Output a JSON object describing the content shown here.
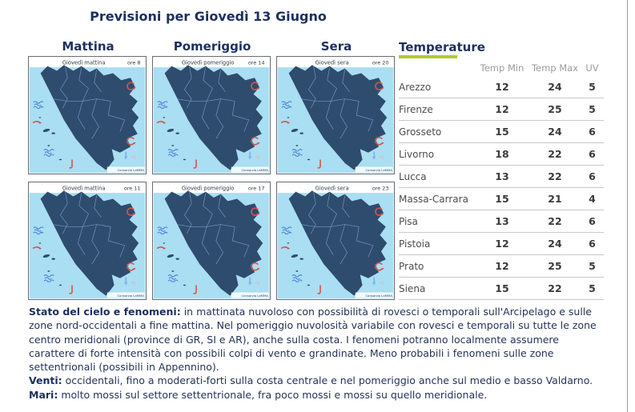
{
  "page": {
    "title": "Previsioni per Giovedì 13 Giugno"
  },
  "columns": {
    "morning": "Mattina",
    "afternoon": "Pomeriggio",
    "evening": "Sera"
  },
  "colors": {
    "navy_text": "#1c2f5e",
    "accent_green": "#b0cc33",
    "sea": "#aadef2",
    "land": "#2e4c6e",
    "province_lines": "#7fa3c9",
    "red_symbol": "#d9544a",
    "blue_arrow": "#85b4e8",
    "celsius_label": "#efa49b"
  },
  "maps": [
    {
      "title": "Giovedì mattina",
      "ore": "ore 8",
      "credit": "Consorzio LaMMA",
      "icons": [
        [
          "sg",
          14,
          12
        ],
        [
          "sw",
          30,
          9
        ],
        [
          "cw",
          46,
          12
        ],
        [
          "sg",
          22,
          22
        ],
        [
          "s",
          38,
          21
        ],
        [
          "cw",
          56,
          20
        ],
        [
          "cw",
          70,
          25
        ],
        [
          "s",
          11,
          32
        ],
        [
          "sw",
          29,
          33
        ],
        [
          "sw",
          46,
          33
        ],
        [
          "cw",
          63,
          36
        ],
        [
          "cw",
          79,
          38
        ],
        [
          "s",
          20,
          47
        ],
        [
          "sw",
          37,
          48
        ],
        [
          "cw",
          55,
          50
        ],
        [
          "cw",
          71,
          53
        ],
        [
          "cw",
          28,
          62
        ],
        [
          "cw",
          46,
          64
        ],
        [
          "cw",
          63,
          66
        ],
        [
          "cw",
          38,
          76
        ],
        [
          "cw",
          56,
          80
        ],
        [
          "cw",
          70,
          76
        ],
        [
          "cw",
          48,
          90
        ]
      ]
    },
    {
      "title": "Giovedì pomeriggio",
      "ore": "ore 14",
      "credit": "Consorzio LaMMA",
      "icons": [
        [
          "cg",
          14,
          12
        ],
        [
          "sg",
          30,
          9
        ],
        [
          "sg",
          46,
          12
        ],
        [
          "cg",
          62,
          10
        ],
        [
          "sg",
          22,
          22
        ],
        [
          "s",
          38,
          22
        ],
        [
          "sg",
          56,
          21
        ],
        [
          "r",
          73,
          25
        ],
        [
          "sw",
          11,
          33
        ],
        [
          "s",
          29,
          34
        ],
        [
          "r",
          46,
          34
        ],
        [
          "sg",
          63,
          36
        ],
        [
          "cg",
          80,
          39
        ],
        [
          "s",
          19,
          48
        ],
        [
          "sg",
          37,
          49
        ],
        [
          "r",
          55,
          50
        ],
        [
          "sg",
          71,
          53
        ],
        [
          "sw",
          28,
          62
        ],
        [
          "r",
          46,
          64
        ],
        [
          "r",
          63,
          67
        ],
        [
          "sg",
          38,
          77
        ],
        [
          "r",
          56,
          81
        ],
        [
          "sg",
          71,
          76
        ],
        [
          "r",
          48,
          91
        ]
      ]
    },
    {
      "title": "Giovedì sera",
      "ore": "ore 20",
      "credit": "Consorzio LaMMA",
      "icons": [
        [
          "mc",
          13,
          12
        ],
        [
          "m",
          30,
          10
        ],
        [
          "mc",
          46,
          12
        ],
        [
          "m",
          62,
          10
        ],
        [
          "mc",
          21,
          23
        ],
        [
          "m",
          38,
          22
        ],
        [
          "m",
          56,
          21
        ],
        [
          "m",
          73,
          26
        ],
        [
          "mc",
          11,
          34
        ],
        [
          "mc",
          29,
          34
        ],
        [
          "m",
          46,
          35
        ],
        [
          "m",
          63,
          37
        ],
        [
          "m",
          80,
          40
        ],
        [
          "mc",
          19,
          49
        ],
        [
          "m",
          37,
          50
        ],
        [
          "m",
          55,
          51
        ],
        [
          "mc",
          71,
          54
        ],
        [
          "m",
          28,
          63
        ],
        [
          "m",
          46,
          65
        ],
        [
          "m",
          63,
          67
        ],
        [
          "mc",
          38,
          78
        ],
        [
          "m",
          56,
          82
        ],
        [
          "m",
          70,
          77
        ],
        [
          "m",
          48,
          91
        ]
      ]
    },
    {
      "title": "Giovedì mattina",
      "ore": "ore 11",
      "credit": "Consorzio LaMMA",
      "icons": [
        [
          "r",
          13,
          12
        ],
        [
          "sg",
          30,
          10
        ],
        [
          "sg",
          46,
          12
        ],
        [
          "cw",
          62,
          10
        ],
        [
          "sg",
          21,
          23
        ],
        [
          "sw",
          38,
          22
        ],
        [
          "cw",
          56,
          21
        ],
        [
          "cw",
          73,
          26
        ],
        [
          "s",
          11,
          34
        ],
        [
          "sg",
          29,
          34
        ],
        [
          "sw",
          46,
          35
        ],
        [
          "cw",
          63,
          37
        ],
        [
          "cw",
          80,
          40
        ],
        [
          "s",
          19,
          49
        ],
        [
          "sg",
          37,
          50
        ],
        [
          "cw",
          55,
          51
        ],
        [
          "cw",
          71,
          54
        ],
        [
          "r",
          27,
          63
        ],
        [
          "sw",
          46,
          65
        ],
        [
          "cw",
          63,
          67
        ],
        [
          "cg",
          38,
          78
        ],
        [
          "cw",
          56,
          82
        ],
        [
          "cw",
          70,
          77
        ],
        [
          "cw",
          48,
          91
        ]
      ]
    },
    {
      "title": "Giovedì pomeriggio",
      "ore": "ore 17",
      "credit": "Consorzio LaMMA",
      "icons": [
        [
          "sw",
          13,
          12
        ],
        [
          "sg",
          30,
          10
        ],
        [
          "cw",
          46,
          12
        ],
        [
          "sw",
          62,
          10
        ],
        [
          "sg",
          21,
          23
        ],
        [
          "s",
          38,
          22
        ],
        [
          "sw",
          56,
          21
        ],
        [
          "sg",
          73,
          26
        ],
        [
          "sw",
          11,
          34
        ],
        [
          "s",
          29,
          34
        ],
        [
          "sg",
          46,
          35
        ],
        [
          "cg",
          63,
          37
        ],
        [
          "r",
          80,
          40
        ],
        [
          "s",
          19,
          49
        ],
        [
          "sg",
          37,
          50
        ],
        [
          "cg",
          55,
          51
        ],
        [
          "r",
          71,
          54
        ],
        [
          "sg",
          27,
          63
        ],
        [
          "cg",
          46,
          65
        ],
        [
          "r",
          63,
          67
        ],
        [
          "sw",
          38,
          78
        ],
        [
          "cg",
          56,
          82
        ],
        [
          "sg",
          70,
          77
        ],
        [
          "sw",
          48,
          91
        ]
      ]
    },
    {
      "title": "Giovedì sera",
      "ore": "ore 23",
      "credit": "Consorzio LaMMA",
      "icons": [
        [
          "mc",
          13,
          12
        ],
        [
          "m",
          30,
          10
        ],
        [
          "m",
          46,
          12
        ],
        [
          "mc",
          62,
          10
        ],
        [
          "mc",
          21,
          23
        ],
        [
          "m",
          38,
          22
        ],
        [
          "m",
          56,
          21
        ],
        [
          "m",
          73,
          26
        ],
        [
          "mc",
          11,
          34
        ],
        [
          "m",
          29,
          34
        ],
        [
          "m",
          46,
          35
        ],
        [
          "m",
          63,
          37
        ],
        [
          "m",
          80,
          40
        ],
        [
          "mc",
          19,
          49
        ],
        [
          "m",
          37,
          50
        ],
        [
          "m",
          55,
          51
        ],
        [
          "m",
          71,
          54
        ],
        [
          "mc",
          28,
          63
        ],
        [
          "m",
          46,
          65
        ],
        [
          "m",
          63,
          67
        ],
        [
          "m",
          38,
          78
        ],
        [
          "mc",
          56,
          82
        ],
        [
          "m",
          70,
          77
        ],
        [
          "m",
          48,
          91
        ]
      ]
    }
  ],
  "temperature": {
    "title": "Temperature",
    "headers": [
      "Temp Min",
      "Temp Max",
      "UV"
    ],
    "rows": [
      {
        "city": "Arezzo",
        "min": 12,
        "max": 24,
        "uv": 5
      },
      {
        "city": "Firenze",
        "min": 12,
        "max": 25,
        "uv": 5
      },
      {
        "city": "Grosseto",
        "min": 15,
        "max": 24,
        "uv": 6
      },
      {
        "city": "Livorno",
        "min": 18,
        "max": 22,
        "uv": 6
      },
      {
        "city": "Lucca",
        "min": 13,
        "max": 22,
        "uv": 6
      },
      {
        "city": "Massa-Carrara",
        "min": 15,
        "max": 21,
        "uv": 4
      },
      {
        "city": "Pisa",
        "min": 13,
        "max": 22,
        "uv": 6
      },
      {
        "city": "Pistoia",
        "min": 12,
        "max": 24,
        "uv": 6
      },
      {
        "city": "Prato",
        "min": 12,
        "max": 25,
        "uv": 5
      },
      {
        "city": "Siena",
        "min": 15,
        "max": 22,
        "uv": 5
      }
    ]
  },
  "forecast": [
    {
      "label": "Stato del cielo e fenomeni:",
      "text": "in mattinata nuvoloso con possibilità di rovesci o temporali sull'Arcipelago e sulle zone nord-occidentali a fine mattina. Nel pomeriggio nuvolosità variabile con rovesci e temporali su tutte le zone centro meridionali (province di GR, SI e AR), anche sulla costa. I fenomeni potranno localmente assumere carattere di forte intensità con possibili colpi di vento e grandinate. Meno probabili i fenomeni sulle zone settentrionali (possibili in Appennino)."
    },
    {
      "label": "Venti:",
      "text": "occidentali, fino a moderati-forti sulla costa centrale e nel pomeriggio anche sul medio e basso Valdarno."
    },
    {
      "label": "Mari:",
      "text": "molto mossi sul settore settentrionale, fra poco mossi e mossi su quello meridionale."
    }
  ]
}
